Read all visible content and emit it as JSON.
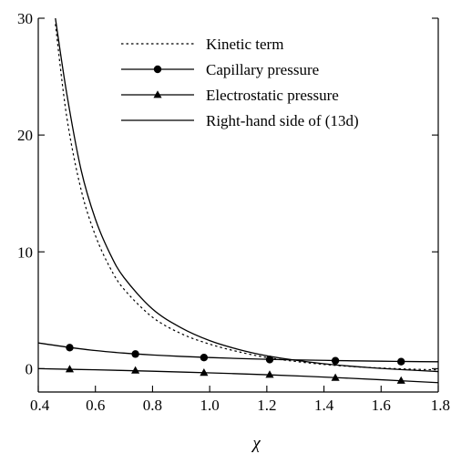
{
  "chart_data": {
    "type": "line",
    "title": "",
    "xlabel": "χ",
    "ylabel": "",
    "xlim": [
      0.4,
      1.8
    ],
    "ylim": [
      -2.0,
      30
    ],
    "x_ticks": [
      0.4,
      0.6,
      0.8,
      1.0,
      1.2,
      1.4,
      1.6,
      1.8
    ],
    "x_tick_labels": [
      "0.4",
      "0.6",
      "0.8",
      "1.0",
      "1.2",
      "1.4",
      "1.6",
      "1.8"
    ],
    "y_ticks": [
      0,
      10,
      20,
      30
    ],
    "y_tick_labels": [
      "0",
      "10",
      "20",
      "30"
    ],
    "grid": false,
    "legend_position": "top-right",
    "series": [
      {
        "name": "Kinetic term",
        "style": "dotted",
        "marker": "none",
        "x": [
          0.46,
          0.5,
          0.55,
          0.6,
          0.65,
          0.7,
          0.8,
          0.9,
          1.0,
          1.1,
          1.2,
          1.3,
          1.4,
          1.5,
          1.6,
          1.7,
          1.8
        ],
        "y": [
          29.5,
          21.5,
          15.3,
          11.4,
          8.7,
          6.8,
          4.4,
          3.0,
          2.1,
          1.45,
          0.95,
          0.62,
          0.36,
          0.18,
          0.05,
          -0.04,
          -0.1
        ]
      },
      {
        "name": "Capillary pressure",
        "style": "solid",
        "marker": "circle",
        "x": [
          0.4,
          0.5,
          0.6,
          0.7,
          0.8,
          0.9,
          1.0,
          1.1,
          1.2,
          1.3,
          1.4,
          1.5,
          1.6,
          1.7,
          1.8
        ],
        "y": [
          2.2,
          1.85,
          1.55,
          1.33,
          1.17,
          1.05,
          0.95,
          0.87,
          0.8,
          0.75,
          0.71,
          0.67,
          0.64,
          0.61,
          0.59
        ],
        "marker_x": [
          0.51,
          0.74,
          0.98,
          1.21,
          1.44,
          1.67
        ],
        "marker_y": [
          1.8,
          1.25,
          0.95,
          0.78,
          0.68,
          0.6
        ]
      },
      {
        "name": "Electrostatic pressure",
        "style": "solid",
        "marker": "triangle",
        "x": [
          0.4,
          0.6,
          0.8,
          1.0,
          1.2,
          1.4,
          1.6,
          1.8
        ],
        "y": [
          0.0,
          -0.1,
          -0.22,
          -0.36,
          -0.52,
          -0.72,
          -0.95,
          -1.2
        ],
        "marker_x": [
          0.51,
          0.74,
          0.98,
          1.21,
          1.44,
          1.67
        ],
        "marker_y": [
          -0.05,
          -0.16,
          -0.35,
          -0.52,
          -0.78,
          -1.03
        ]
      },
      {
        "name": "Right-hand side of (13d)",
        "style": "solid",
        "marker": "none",
        "x": [
          0.46,
          0.5,
          0.55,
          0.6,
          0.65,
          0.7,
          0.8,
          0.9,
          1.0,
          1.1,
          1.2,
          1.3,
          1.4,
          1.5,
          1.6,
          1.7,
          1.8
        ],
        "y": [
          30,
          23.5,
          17.0,
          12.8,
          9.9,
          7.8,
          5.1,
          3.5,
          2.4,
          1.65,
          1.1,
          0.72,
          0.42,
          0.2,
          0.02,
          -0.12,
          -0.25
        ]
      }
    ]
  }
}
